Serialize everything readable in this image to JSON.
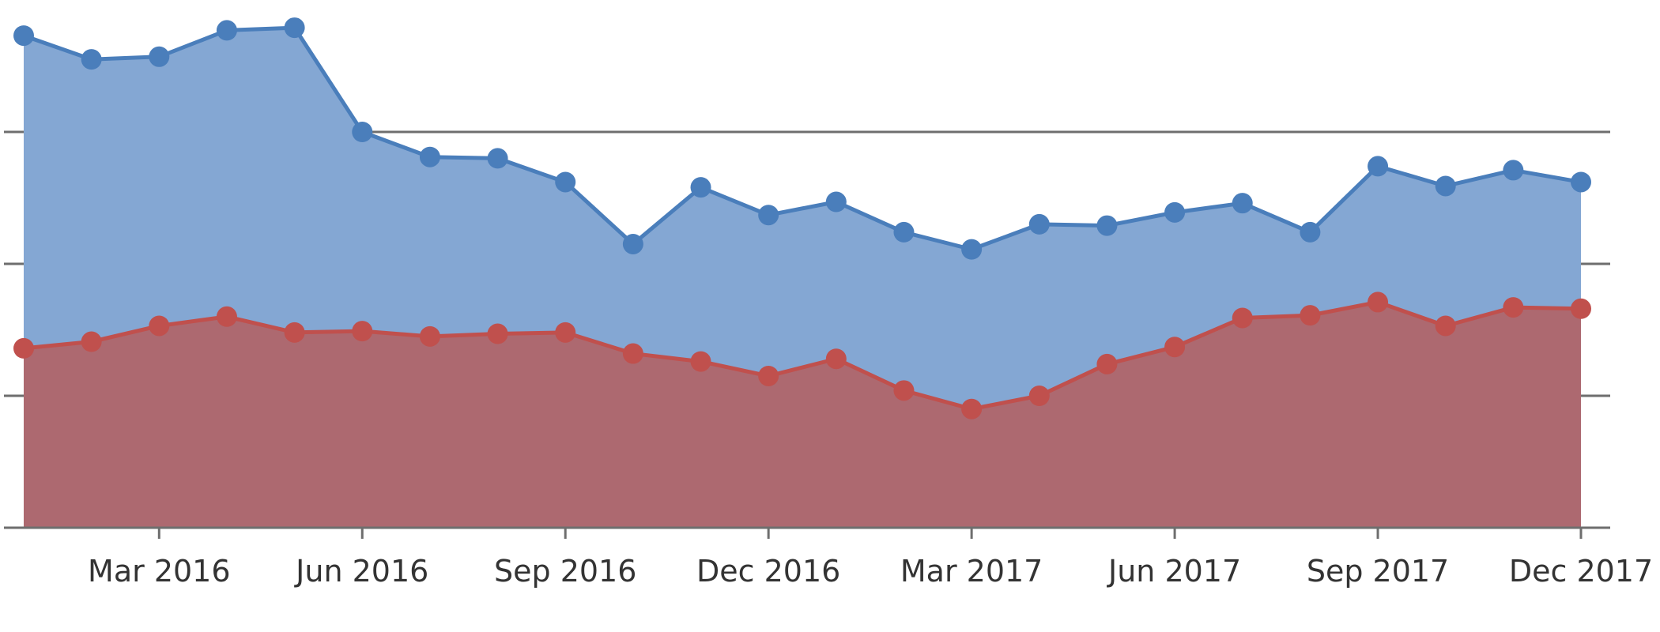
{
  "chart_data": {
    "type": "area",
    "title": "",
    "xlabel": "",
    "ylabel": "",
    "x": [
      "2016-01",
      "2016-02",
      "2016-03",
      "2016-04",
      "2016-05",
      "2016-06",
      "2016-07",
      "2016-08",
      "2016-09",
      "2016-10",
      "2016-11",
      "2016-12",
      "2017-01",
      "2017-02",
      "2017-03",
      "2017-04",
      "2017-05",
      "2017-06",
      "2017-07",
      "2017-08",
      "2017-09",
      "2017-10",
      "2017-11",
      "2017-12"
    ],
    "x_tick_labels": [
      "Mar 2016",
      "Jun 2016",
      "Sep 2016",
      "Dec 2016",
      "Mar 2017",
      "Jun 2017",
      "Sep 2017",
      "Dec 2017"
    ],
    "x_tick_months": [
      "2016-03",
      "2016-06",
      "2016-09",
      "2016-12",
      "2017-03",
      "2017-06",
      "2017-09",
      "2017-12"
    ],
    "ylim": [
      0,
      4
    ],
    "y_gridlines": [
      1,
      2,
      3
    ],
    "grid": true,
    "legend": "none",
    "series": [
      {
        "color": "#4a7ebb",
        "fill": "#84a7d3",
        "values": [
          3.73,
          3.55,
          3.57,
          3.77,
          3.79,
          3.0,
          2.81,
          2.8,
          2.62,
          2.15,
          2.58,
          2.37,
          2.47,
          2.24,
          2.11,
          2.3,
          2.29,
          2.39,
          2.46,
          2.24,
          2.74,
          2.59,
          2.71,
          2.62
        ]
      },
      {
        "color": "#c0504d",
        "fill": "#ad6970",
        "values": [
          1.36,
          1.41,
          1.53,
          1.6,
          1.48,
          1.49,
          1.45,
          1.47,
          1.48,
          1.32,
          1.26,
          1.15,
          1.28,
          1.04,
          0.9,
          1.0,
          1.24,
          1.37,
          1.59,
          1.61,
          1.71,
          1.53,
          1.67,
          1.66
        ]
      }
    ]
  }
}
